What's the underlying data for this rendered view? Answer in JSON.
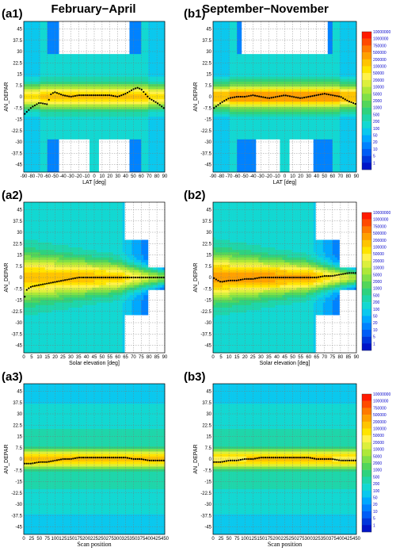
{
  "columns": [
    "February−April",
    "September−November"
  ],
  "colorbar": {
    "labels": [
      "10000000",
      "1000000",
      "750000",
      "500000",
      "200000",
      "100000",
      "50000",
      "20000",
      "10000",
      "5000",
      "2000",
      "1000",
      "500",
      "200",
      "100",
      "50",
      "20",
      "10",
      "5",
      "1"
    ],
    "colors": [
      "#ff1a00",
      "#ff4a00",
      "#ff7a00",
      "#ffa000",
      "#ffc400",
      "#ffe400",
      "#fff24a",
      "#dcef3c",
      "#aee838",
      "#80e048",
      "#52d65a",
      "#2ed27e",
      "#1ed6aa",
      "#12d8d2",
      "#0ac8ee",
      "#00a8ff",
      "#0082ff",
      "#005cf6",
      "#0036dc",
      "#0014c8"
    ]
  },
  "chart_data": [
    {
      "id": "a1",
      "type": "heatmap",
      "label": "(a1)",
      "title": "",
      "xlabel": "LAT [deg]",
      "ylabel": "AN_DEPAR",
      "xlim": [
        -90,
        90
      ],
      "ylim": [
        -50,
        50
      ],
      "xticks": [
        -90,
        -80,
        -70,
        -60,
        -50,
        -40,
        -30,
        -20,
        -10,
        0,
        10,
        20,
        30,
        40,
        50,
        60,
        70,
        80,
        90
      ],
      "yticks": [
        45,
        37.5,
        30,
        22.5,
        15,
        7.5,
        0,
        -7.5,
        -15,
        -22.5,
        -30,
        -37.5,
        -45
      ],
      "ytick_labels": [
        "45",
        "37.5",
        "30",
        "22.5",
        "15",
        "7.5",
        "0",
        "-7.5",
        "-15",
        "-22.5",
        "-30",
        "-37.5",
        "-45"
      ],
      "mean_line": {
        "x": [
          -90,
          -80,
          -70,
          -60,
          -55,
          -50,
          -40,
          -30,
          -20,
          -10,
          0,
          10,
          20,
          30,
          40,
          50,
          55,
          60,
          70,
          80,
          90
        ],
        "y": [
          -12,
          -7,
          -4,
          -5,
          2,
          3,
          1,
          0,
          1,
          1,
          1,
          1,
          1,
          0,
          2,
          5,
          6,
          5,
          -1,
          -4,
          -8
        ]
      }
    },
    {
      "id": "b1",
      "type": "heatmap",
      "label": "(b1)",
      "title": "",
      "xlabel": "LAT [deg]",
      "ylabel": "AN_DEPAR",
      "xlim": [
        -90,
        90
      ],
      "ylim": [
        -50,
        50
      ],
      "xticks": [
        -90,
        -80,
        -70,
        -60,
        -50,
        -40,
        -30,
        -20,
        -10,
        0,
        10,
        20,
        30,
        40,
        50,
        60,
        70,
        80,
        90
      ],
      "yticks": [
        45,
        37.5,
        30,
        22.5,
        15,
        7.5,
        0,
        -7.5,
        -15,
        -22.5,
        -30,
        -37.5,
        -45
      ],
      "ytick_labels": [
        "45",
        "37.5",
        "30",
        "22.5",
        "15",
        "7.5",
        "0",
        "-7.5",
        "-15",
        "-22.5",
        "-30",
        "-37.5",
        "-45"
      ],
      "mean_line": {
        "x": [
          -90,
          -80,
          -70,
          -60,
          -50,
          -40,
          -30,
          -20,
          -10,
          0,
          10,
          20,
          30,
          40,
          50,
          60,
          70,
          80,
          90
        ],
        "y": [
          -8,
          -4,
          -1,
          0,
          0,
          1,
          0,
          -1,
          0,
          1,
          0,
          -1,
          0,
          1,
          2,
          1,
          0,
          -3,
          -5
        ]
      }
    },
    {
      "id": "a2",
      "type": "heatmap",
      "label": "(a2)",
      "title": "",
      "xlabel": "Solar elevation [deg]",
      "ylabel": "AN_DEPAR",
      "xlim": [
        0,
        90
      ],
      "ylim": [
        -50,
        50
      ],
      "xticks": [
        0,
        5,
        10,
        15,
        20,
        25,
        30,
        35,
        40,
        45,
        50,
        55,
        60,
        65,
        70,
        75,
        80,
        85,
        90
      ],
      "yticks": [
        45,
        37.5,
        30,
        22.5,
        15,
        7.5,
        0,
        -7.5,
        -15,
        -22.5,
        -30,
        -37.5,
        -45
      ],
      "ytick_labels": [
        "45",
        "37.5",
        "30",
        "22.5",
        "15",
        "7.5",
        "0",
        "-7.5",
        "-15",
        "-22.5",
        "-30",
        "-37.5",
        "-45"
      ],
      "mean_line": {
        "x": [
          0,
          2,
          5,
          10,
          15,
          20,
          25,
          30,
          35,
          40,
          45,
          50,
          55,
          60,
          65,
          70,
          75,
          80,
          85,
          90
        ],
        "y": [
          -15,
          -8,
          -6,
          -5,
          -4,
          -3,
          -2,
          -1,
          0,
          0,
          0,
          0,
          0,
          0,
          0,
          0,
          0,
          0,
          0,
          0
        ]
      }
    },
    {
      "id": "b2",
      "type": "heatmap",
      "label": "(b2)",
      "title": "",
      "xlabel": "Solar elevation [deg]",
      "ylabel": "AN_DEPAR",
      "xlim": [
        0,
        90
      ],
      "ylim": [
        -50,
        50
      ],
      "xticks": [
        0,
        5,
        10,
        15,
        20,
        25,
        30,
        35,
        40,
        45,
        50,
        55,
        60,
        65,
        70,
        75,
        80,
        85,
        90
      ],
      "yticks": [
        45,
        37.5,
        30,
        22.5,
        15,
        7.5,
        0,
        -7.5,
        -15,
        -22.5,
        -30,
        -37.5,
        -45
      ],
      "ytick_labels": [
        "45",
        "37.5",
        "30",
        "22.5",
        "15",
        "7.5",
        "0",
        "-7.5",
        "-15",
        "-22.5",
        "-30",
        "-37.5",
        "-45"
      ],
      "mean_line": {
        "x": [
          0,
          3,
          5,
          10,
          15,
          20,
          25,
          30,
          35,
          40,
          45,
          50,
          55,
          60,
          65,
          70,
          75,
          80,
          85,
          88
        ],
        "y": [
          0,
          -2,
          -3,
          -2,
          -2,
          -1,
          -1,
          0,
          0,
          0,
          0,
          0,
          0,
          0,
          0,
          1,
          1,
          2,
          3,
          3
        ]
      }
    },
    {
      "id": "a3",
      "type": "heatmap",
      "label": "(a3)",
      "title": "",
      "xlabel": "Scan position",
      "ylabel": "AN_DEPAR",
      "xlim": [
        0,
        450
      ],
      "ylim": [
        -50,
        50
      ],
      "xticks": [
        0,
        25,
        50,
        75,
        100,
        125,
        150,
        175,
        200,
        225,
        250,
        275,
        300,
        325,
        350,
        375,
        400,
        425,
        450
      ],
      "yticks": [
        45,
        37.5,
        30,
        22.5,
        15,
        7.5,
        0,
        -7.5,
        -15,
        -22.5,
        -30,
        -37.5,
        -45
      ],
      "ytick_labels": [
        "45",
        "37.5",
        "30",
        "22.5",
        "15",
        "7.5",
        "0",
        "-7.5",
        "-15",
        "-22.5",
        "-30",
        "-37.5",
        "-45"
      ],
      "mean_line": {
        "x": [
          5,
          25,
          50,
          75,
          100,
          125,
          150,
          175,
          200,
          225,
          250,
          275,
          300,
          325,
          350,
          375,
          400,
          425,
          445
        ],
        "y": [
          -3,
          -3,
          -2,
          -2,
          -1,
          0,
          0,
          1,
          1,
          1,
          1,
          1,
          1,
          1,
          0,
          0,
          -1,
          -1,
          -1
        ]
      }
    },
    {
      "id": "b3",
      "type": "heatmap",
      "label": "(b3)",
      "title": "",
      "xlabel": "Scan position",
      "ylabel": "AN_DEPAR",
      "xlim": [
        0,
        450
      ],
      "ylim": [
        -50,
        50
      ],
      "xticks": [
        0,
        25,
        50,
        75,
        100,
        125,
        150,
        175,
        200,
        225,
        250,
        275,
        300,
        325,
        350,
        375,
        400,
        425,
        450
      ],
      "yticks": [
        45,
        37.5,
        30,
        22.5,
        15,
        7.5,
        0,
        -7.5,
        -15,
        -22.5,
        -30,
        -37.5,
        -45
      ],
      "ytick_labels": [
        "45",
        "37.5",
        "30",
        "22.5",
        "15",
        "7.5",
        "0",
        "-7.5",
        "-15",
        "-22.5",
        "-30",
        "-37.5",
        "-45"
      ],
      "mean_line": {
        "x": [
          5,
          25,
          50,
          75,
          100,
          125,
          150,
          175,
          200,
          225,
          250,
          275,
          300,
          325,
          350,
          375,
          400,
          425,
          445
        ],
        "y": [
          -2,
          -2,
          -1,
          -1,
          0,
          0,
          1,
          1,
          1,
          1,
          1,
          1,
          1,
          0,
          0,
          0,
          -1,
          -1,
          -1
        ]
      }
    }
  ]
}
